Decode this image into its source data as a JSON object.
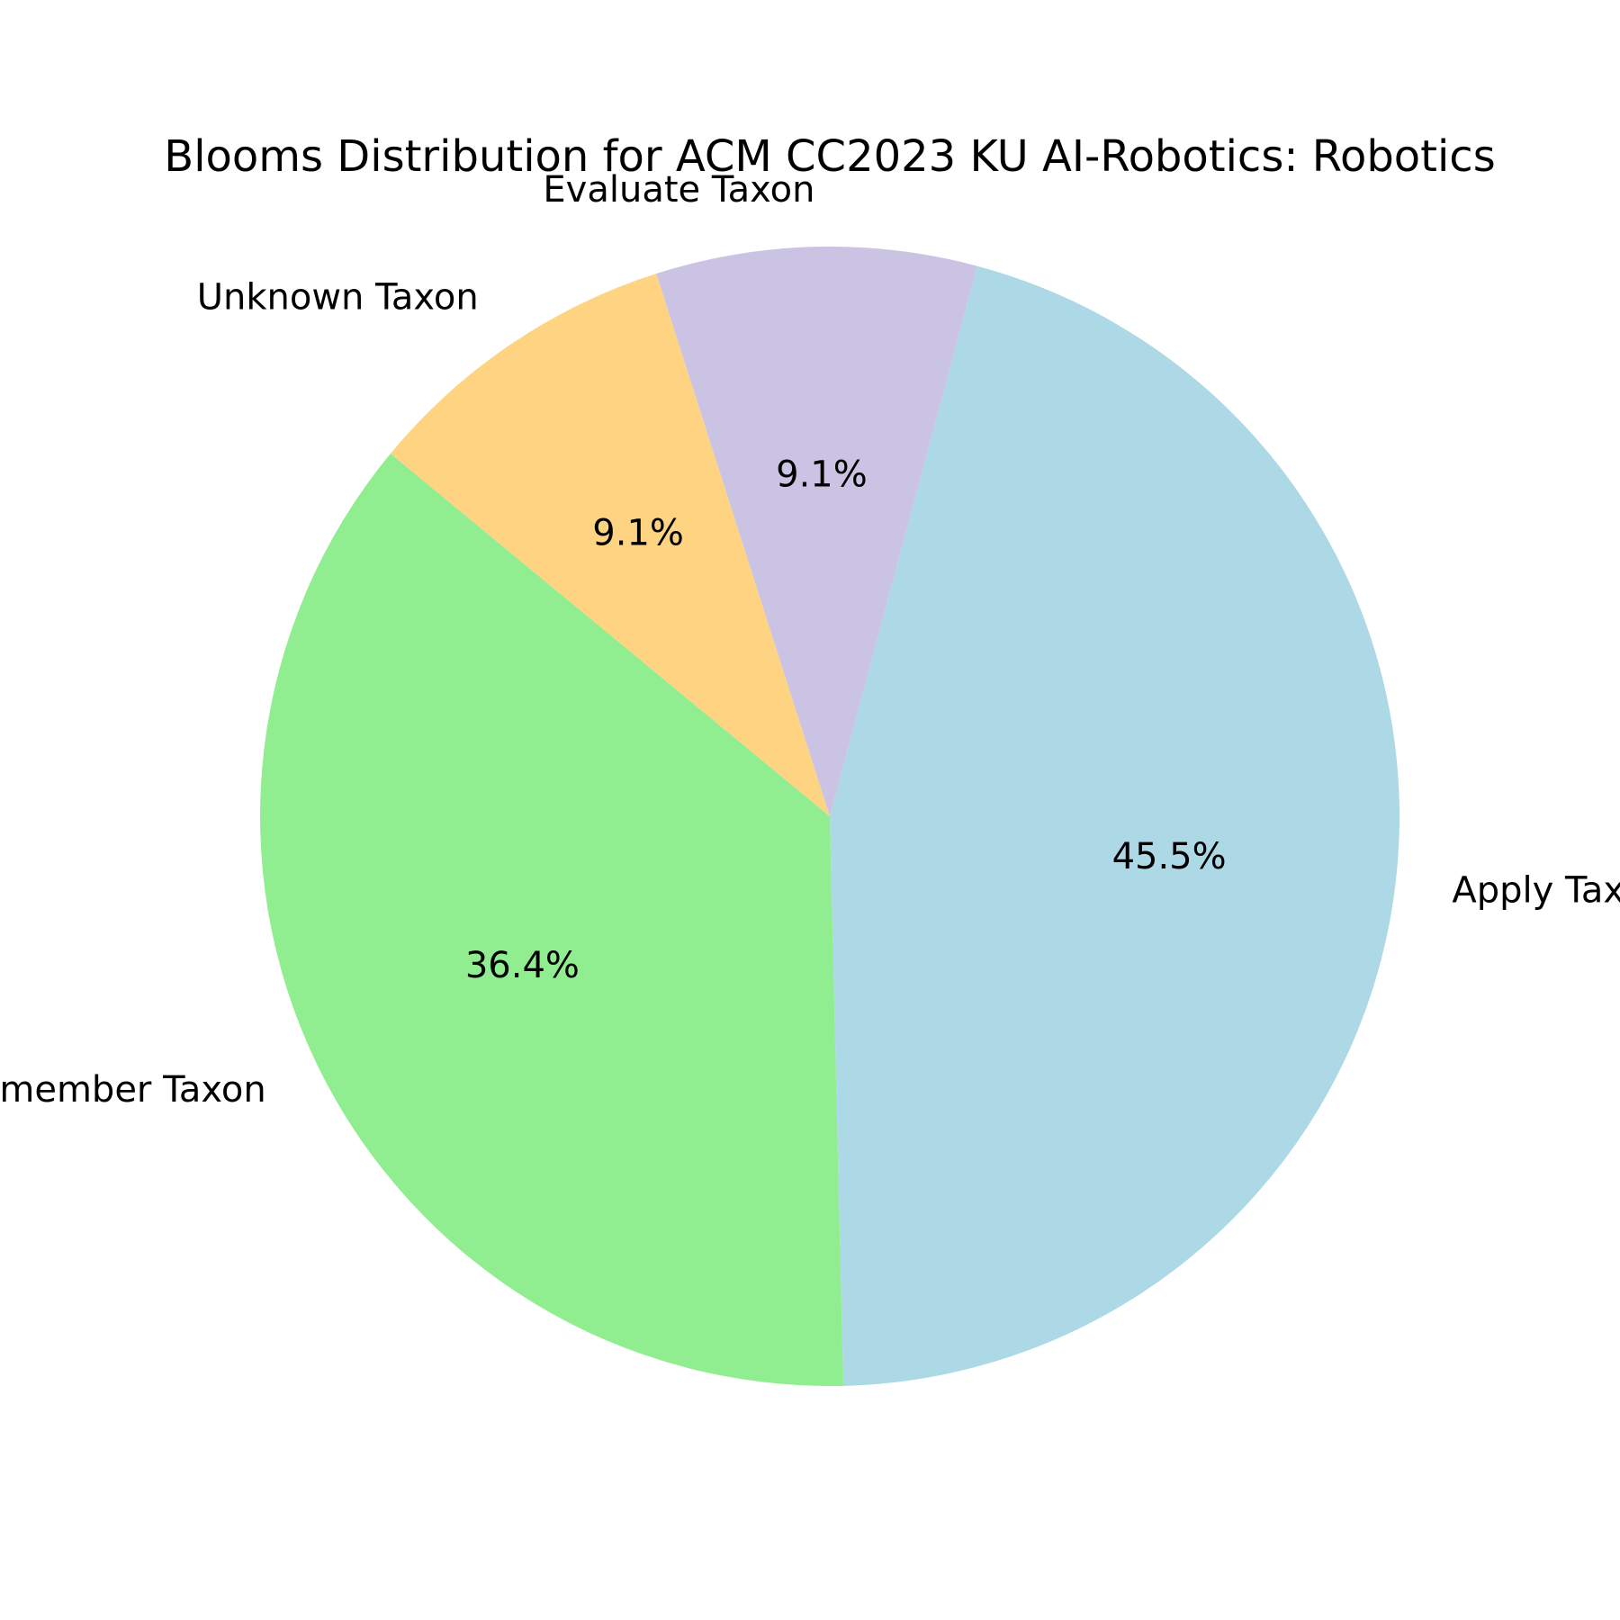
{
  "chart_data": {
    "type": "pie",
    "title": "Blooms Distribution for ACM CC2023 KU AI-Robotics: Robotics",
    "slices": [
      {
        "label": "Apply Taxon",
        "value": 45.5,
        "pct_label": "45.5%",
        "color": "#add8e6"
      },
      {
        "label": "Remember Taxon",
        "value": 36.4,
        "pct_label": "36.4%",
        "color": "#90ee90"
      },
      {
        "label": "Unknown Taxon",
        "value": 9.1,
        "pct_label": "9.1%",
        "color": "#fed482"
      },
      {
        "label": "Evaluate Taxon",
        "value": 9.1,
        "pct_label": "9.1%",
        "color": "#cbc3e3"
      }
    ],
    "start_angle_deg": 75,
    "direction": "clockwise",
    "legend": "none"
  }
}
